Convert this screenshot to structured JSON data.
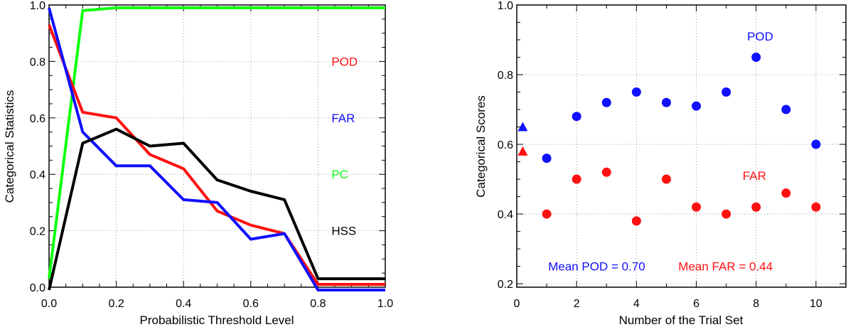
{
  "colors": {
    "pod": "#ff1010",
    "far": "#1010ff",
    "pc": "#10ff10",
    "hss": "#000000",
    "scatter_pod": "#1010ff",
    "scatter_far": "#ff1010"
  },
  "chart_data": [
    {
      "type": "line",
      "xlabel": "Probabilistic Threshold Level",
      "ylabel": "Categorical Statistics",
      "xlim": [
        0.0,
        1.0
      ],
      "ylim": [
        0.0,
        1.0
      ],
      "x_ticks": [
        0.0,
        0.2,
        0.4,
        0.6,
        0.8,
        1.0
      ],
      "x_tick_labels": [
        "0.0",
        "0.2",
        "0.4",
        "0.6",
        "0.8",
        "1.0"
      ],
      "y_ticks": [
        0.0,
        0.2,
        0.4,
        0.6,
        0.8,
        1.0
      ],
      "y_tick_labels": [
        "0.0",
        "0.2",
        "0.4",
        "0.6",
        "0.8",
        "1.0"
      ],
      "grid": "dotted",
      "x": [
        0.0,
        0.1,
        0.2,
        0.3,
        0.4,
        0.5,
        0.6,
        0.7,
        0.8,
        0.9,
        1.0
      ],
      "series": [
        {
          "name": "POD",
          "color_key": "pod",
          "label_x": 0.84,
          "label_y": 0.8,
          "values": [
            0.93,
            0.62,
            0.6,
            0.47,
            0.42,
            0.27,
            0.22,
            0.19,
            0.01,
            0.01,
            0.01
          ]
        },
        {
          "name": "FAR",
          "color_key": "far",
          "label_x": 0.84,
          "label_y": 0.6,
          "values": [
            0.99,
            0.55,
            0.43,
            0.43,
            0.31,
            0.3,
            0.17,
            0.19,
            -0.01,
            -0.01,
            -0.01
          ]
        },
        {
          "name": "PC",
          "color_key": "pc",
          "label_x": 0.84,
          "label_y": 0.4,
          "values": [
            0.03,
            0.98,
            0.99,
            0.99,
            0.99,
            0.99,
            0.99,
            0.99,
            0.99,
            0.99,
            0.99
          ]
        },
        {
          "name": "HSS",
          "color_key": "hss",
          "label_x": 0.84,
          "label_y": 0.2,
          "values": [
            -0.01,
            0.51,
            0.56,
            0.5,
            0.51,
            0.38,
            0.34,
            0.31,
            0.03,
            0.03,
            0.03
          ]
        }
      ]
    },
    {
      "type": "scatter",
      "xlabel": "Number of the Trial Set",
      "ylabel": "Categorical Scores",
      "xlim": [
        0,
        11
      ],
      "ylim": [
        0.19,
        1.0
      ],
      "x_ticks": [
        0,
        2,
        4,
        6,
        8,
        10
      ],
      "x_tick_labels": [
        "0",
        "2",
        "4",
        "6",
        "8",
        "10"
      ],
      "y_ticks": [
        0.2,
        0.4,
        0.6,
        0.8,
        1.0
      ],
      "y_tick_labels": [
        "0.2",
        "0.4",
        "0.6",
        "0.8",
        "1.0"
      ],
      "grid": "dotted",
      "series": [
        {
          "name": "POD",
          "color_key": "scatter_pod",
          "label_x": 7.7,
          "label_y": 0.91,
          "x": [
            1,
            2,
            3,
            4,
            5,
            6,
            7,
            8,
            9,
            10
          ],
          "y": [
            0.56,
            0.68,
            0.72,
            0.75,
            0.72,
            0.71,
            0.75,
            0.85,
            0.7,
            0.6
          ],
          "initial": {
            "x": 0.2,
            "y": 0.65
          }
        },
        {
          "name": "FAR",
          "color_key": "scatter_far",
          "label_x": 7.55,
          "label_y": 0.51,
          "x": [
            1,
            2,
            3,
            4,
            5,
            6,
            7,
            8,
            9,
            10
          ],
          "y": [
            0.4,
            0.5,
            0.52,
            0.38,
            0.5,
            0.42,
            0.4,
            0.42,
            0.46,
            0.42
          ],
          "initial": {
            "x": 0.2,
            "y": 0.58
          }
        }
      ],
      "annotations": [
        {
          "text": "Mean POD = 0.70",
          "color_key": "scatter_pod",
          "x": 1.05,
          "y": 0.25
        },
        {
          "text": "Mean FAR = 0.44",
          "color_key": "scatter_far",
          "x": 5.4,
          "y": 0.25
        }
      ]
    }
  ]
}
